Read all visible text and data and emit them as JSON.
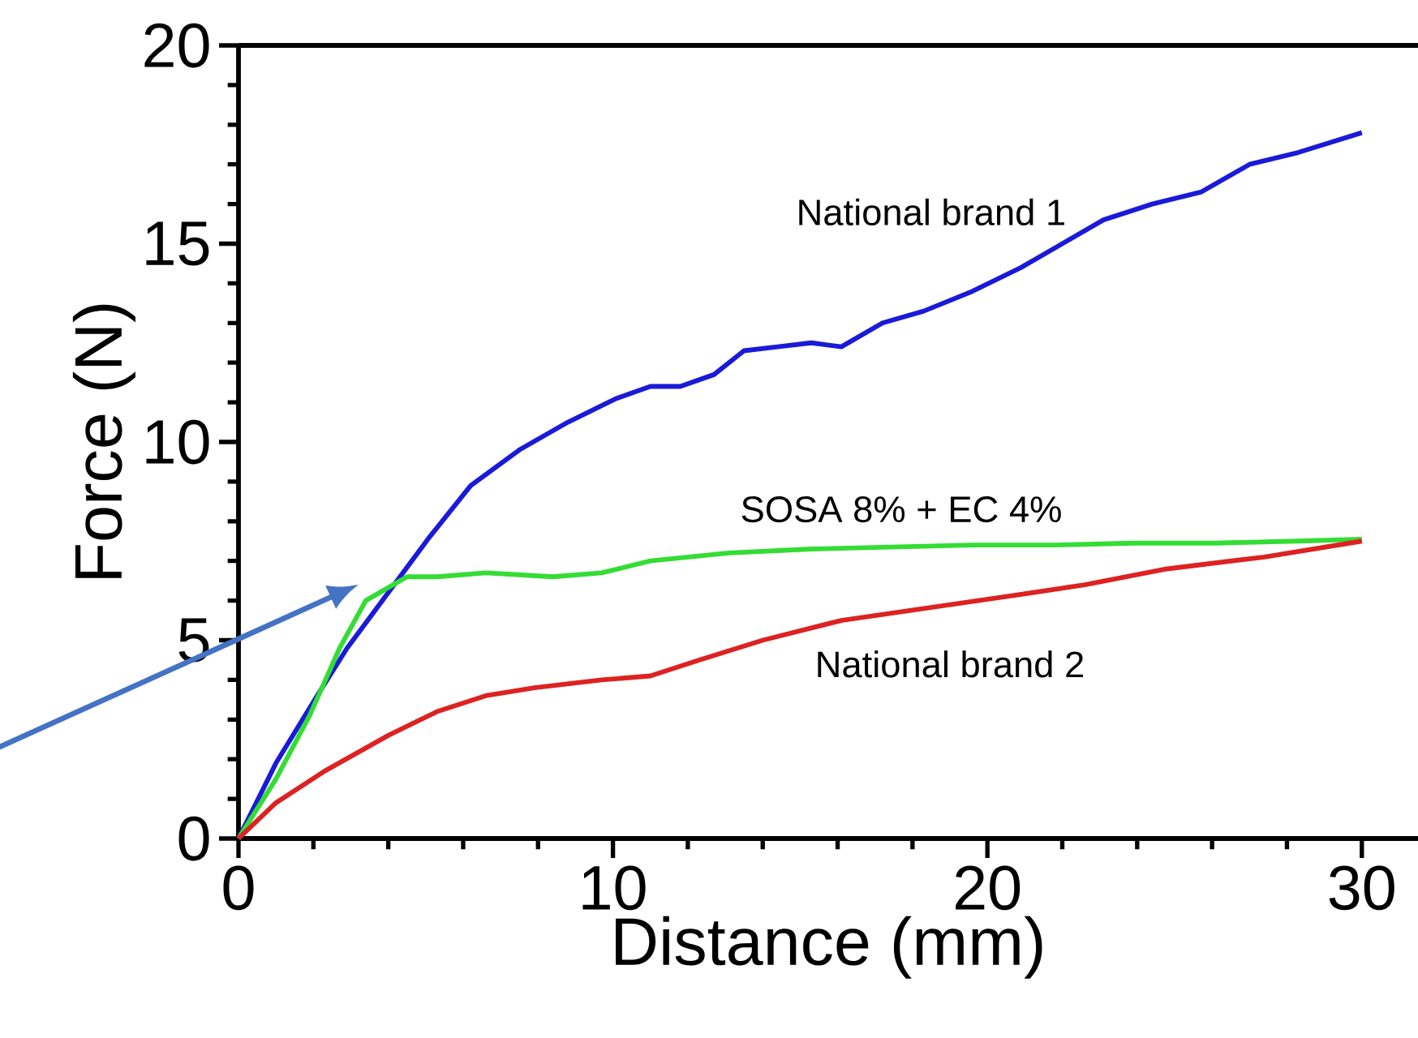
{
  "chart_data": {
    "type": "line",
    "xlabel": "Distance (mm)",
    "ylabel": "Force (N)",
    "xlim": [
      0,
      31.5
    ],
    "ylim": [
      0,
      20
    ],
    "xticks": [
      0,
      10,
      20,
      30
    ],
    "yticks": [
      0,
      5,
      10,
      15,
      20
    ],
    "grid": false,
    "legend": false,
    "marker": "none",
    "line_style": "solid",
    "series": [
      {
        "name": "National  brand 1",
        "color": "#1a1ad8",
        "x": [
          0,
          1,
          2.1,
          2.9,
          4,
          5.1,
          6.2,
          7.5,
          8.8,
          10.1,
          11,
          11.8,
          12.7,
          13.5,
          14.4,
          15.3,
          16.1,
          17.2,
          18.3,
          19.6,
          20.9,
          22,
          23.1,
          24.4,
          25.7,
          27,
          28.3,
          30
        ],
        "values": [
          0,
          1.9,
          3.6,
          4.8,
          6.2,
          7.6,
          8.9,
          9.8,
          10.5,
          11.1,
          11.4,
          11.4,
          11.7,
          12.3,
          12.4,
          12.5,
          12.4,
          13.0,
          13.3,
          13.8,
          14.4,
          15.0,
          15.6,
          16.0,
          16.3,
          17.0,
          17.3,
          17.8
        ]
      },
      {
        "name": "SOSA 8% +  EC 4%",
        "color": "#33dd33",
        "x": [
          0,
          1,
          1.9,
          2.7,
          3.4,
          4.5,
          5.3,
          6.6,
          8.4,
          9.7,
          11,
          13.1,
          15.3,
          17.4,
          19.6,
          21.8,
          23.9,
          26.1,
          28.3,
          30
        ],
        "values": [
          0,
          1.5,
          3.1,
          4.8,
          6.0,
          6.6,
          6.6,
          6.7,
          6.6,
          6.7,
          7.0,
          7.2,
          7.3,
          7.35,
          7.4,
          7.4,
          7.45,
          7.45,
          7.5,
          7.55
        ]
      },
      {
        "name": "National brand 2",
        "color": "#dd2222",
        "x": [
          0,
          1,
          2.3,
          4,
          5.3,
          6.6,
          7.9,
          9.7,
          11,
          12.3,
          14,
          16.1,
          18.3,
          20.5,
          22.6,
          24.8,
          27.4,
          30
        ],
        "values": [
          0,
          0.9,
          1.7,
          2.6,
          3.2,
          3.6,
          3.8,
          4.0,
          4.1,
          4.5,
          5.0,
          5.5,
          5.8,
          6.1,
          6.4,
          6.8,
          7.1,
          7.5
        ]
      }
    ]
  }
}
